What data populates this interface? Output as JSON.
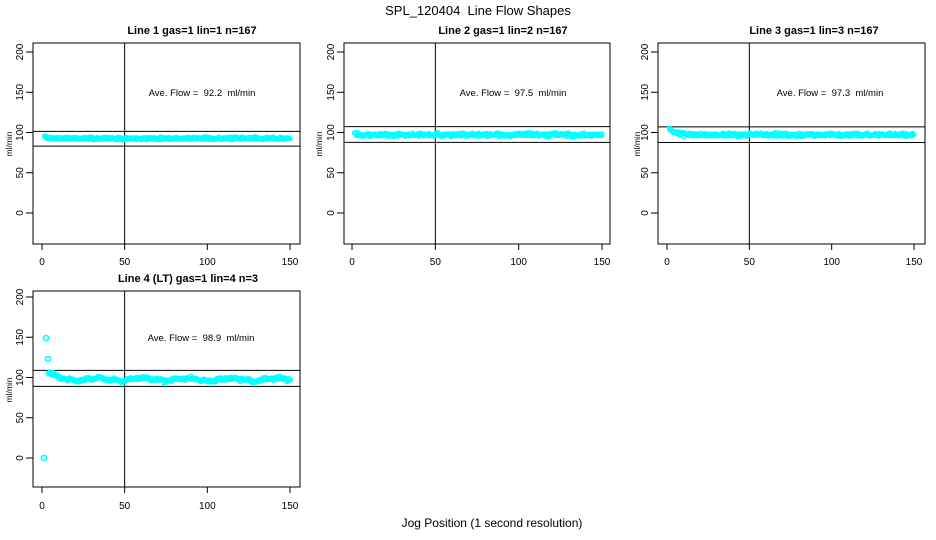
{
  "page": {
    "title": "SPL_120404  Line Flow Shapes",
    "xlabel": "Jog Position (1 second resolution)",
    "background_color": "#ffffff",
    "axis_color": "#000000",
    "point_color": "#00ffff"
  },
  "chart_data": [
    {
      "type": "scatter",
      "title": "Line 1 gas=1 lin=1 n=167",
      "ylabel": "ml/min",
      "ave_flow_ml_min": 92.2,
      "ave_label": "Ave. Flow =  92.2  ml/min",
      "xticks": [
        0,
        50,
        100,
        150
      ],
      "yticks": [
        0,
        50,
        100,
        150,
        200
      ],
      "xlim": [
        0,
        150
      ],
      "ylim": [
        0,
        200
      ],
      "vline_x": 50,
      "limit_lines": [
        101.4,
        83.0
      ],
      "band": {
        "x_start": 1.5,
        "x_end": 150,
        "n": 380,
        "mean": 92.8,
        "noise": 1.0,
        "transient_amp": 2.5,
        "transient_tau": 2.0,
        "seed": 11
      },
      "outliers": []
    },
    {
      "type": "scatter",
      "title": "Line 2 gas=1 lin=2 n=167",
      "ylabel": "ml/min",
      "ave_flow_ml_min": 97.5,
      "ave_label": "Ave. Flow =  97.5  ml/min",
      "xticks": [
        0,
        50,
        100,
        150
      ],
      "yticks": [
        0,
        50,
        100,
        150,
        200
      ],
      "xlim": [
        0,
        150
      ],
      "ylim": [
        0,
        200
      ],
      "vline_x": 50,
      "limit_lines": [
        107.3,
        87.8
      ],
      "band": {
        "x_start": 1.5,
        "x_end": 150,
        "n": 380,
        "mean": 97.2,
        "noise": 1.3,
        "transient_amp": 3.0,
        "transient_tau": 1.8,
        "seed": 22
      },
      "outliers": []
    },
    {
      "type": "scatter",
      "title": "Line 3 gas=1 lin=3 n=167",
      "ylabel": "ml/min",
      "ave_flow_ml_min": 97.3,
      "ave_label": "Ave. Flow =  97.3  ml/min",
      "xticks": [
        0,
        50,
        100,
        150
      ],
      "yticks": [
        0,
        50,
        100,
        150,
        200
      ],
      "xlim": [
        0,
        150
      ],
      "ylim": [
        0,
        200
      ],
      "vline_x": 50,
      "limit_lines": [
        107.0,
        87.6
      ],
      "band": {
        "x_start": 1.5,
        "x_end": 150,
        "n": 380,
        "mean": 97.2,
        "noise": 1.3,
        "transient_amp": 7.0,
        "transient_tau": 3.5,
        "seed": 33
      },
      "outliers": []
    },
    {
      "type": "scatter",
      "title": "Line 4 (LT) gas=1 lin=4 n=3",
      "ylabel": "ml/min",
      "ave_flow_ml_min": 98.9,
      "ave_label": "Ave. Flow =  98.9  ml/min",
      "xticks": [
        0,
        50,
        100,
        150
      ],
      "yticks": [
        0,
        50,
        100,
        150,
        200
      ],
      "xlim": [
        0,
        150
      ],
      "ylim": [
        0,
        200
      ],
      "vline_x": 50,
      "limit_lines": [
        108.8,
        89.0
      ],
      "band": {
        "x_start": 4,
        "x_end": 150,
        "n": 240,
        "mean": 97.6,
        "noise": 1.2,
        "transient_amp": 8.0,
        "transient_tau": 4.5,
        "wiggle_amp": 1.5,
        "wiggle_period": 27,
        "wiggle_amp2": 0.8,
        "wiggle_period2": 9,
        "seed": 44
      },
      "outliers": [
        [
          1.2,
          0
        ],
        [
          2.4,
          149
        ],
        [
          3.6,
          123
        ]
      ]
    }
  ]
}
